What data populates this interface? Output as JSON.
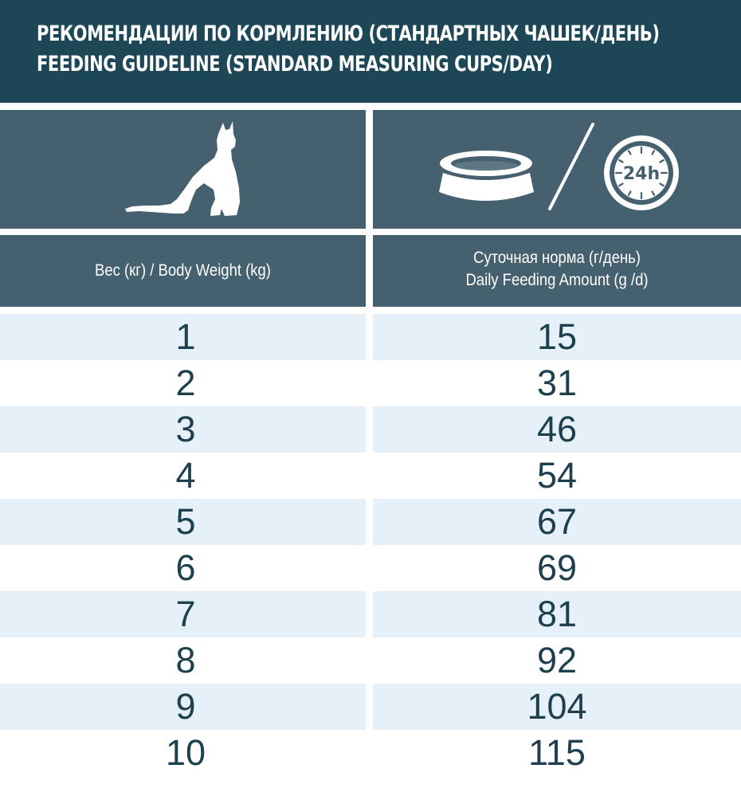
{
  "header": {
    "title_ru": "РЕКОМЕНДАЦИИ ПО КОРМЛЕНИЮ (СТАНДАРТНЫХ ЧАШЕК/ДЕНЬ)",
    "title_en": "FEEDING GUIDELINE (STANDARD MEASURING CUPS/DAY)"
  },
  "icons": {
    "left": "cat-silhouette-icon",
    "right": [
      "food-bowl-icon",
      "slash-divider",
      "clock-24h-icon"
    ],
    "clock_label": "24h"
  },
  "columns": {
    "weight_label": "Вес (кг) / Body Weight (kg)",
    "amount_label_ru": "Суточная норма (г/день)",
    "amount_label_en": "Daily Feeding Amount (g /d)"
  },
  "rows": [
    {
      "weight": "1",
      "amount": "15"
    },
    {
      "weight": "2",
      "amount": "31"
    },
    {
      "weight": "3",
      "amount": "46"
    },
    {
      "weight": "4",
      "amount": "54"
    },
    {
      "weight": "5",
      "amount": "67"
    },
    {
      "weight": "6",
      "amount": "69"
    },
    {
      "weight": "7",
      "amount": "81"
    },
    {
      "weight": "8",
      "amount": "92"
    },
    {
      "weight": "9",
      "amount": "104"
    },
    {
      "weight": "10",
      "amount": "115"
    }
  ],
  "colors": {
    "header_bg": "#1d4756",
    "cell_bg": "#45616f",
    "row_shade": "#e5f0f9",
    "value_text": "#1d3f4e"
  }
}
